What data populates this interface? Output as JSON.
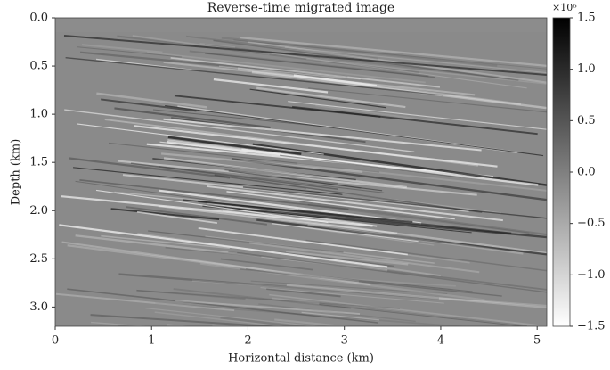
{
  "chart_data": {
    "type": "image",
    "title": "Reverse-time migrated image",
    "xlabel": "Horizontal distance (km)",
    "ylabel": "Depth (km)",
    "xlim": [
      0,
      5.1
    ],
    "xticks": [
      0,
      1,
      2,
      3,
      4,
      5
    ],
    "ylim": [
      0,
      3.2
    ],
    "invert_y": true,
    "yticks": [
      {
        "value": 0,
        "label": "0.0"
      },
      0.5,
      {
        "value": 1,
        "label": "1.0"
      },
      1.5,
      {
        "value": 2,
        "label": "2.0"
      },
      2.5,
      {
        "value": 3,
        "label": "3.0"
      }
    ],
    "colorbar": {
      "lim": [
        -1.5,
        1.5
      ],
      "colors": [
        "#ffffff",
        "#000000"
      ],
      "offset_label": "×10⁶",
      "ticks": [
        {
          "value": -1.5,
          "label": "−1.5"
        },
        {
          "value": -1,
          "label": "−1.0"
        },
        {
          "value": -0.5,
          "label": "−0.5"
        },
        {
          "value": 0,
          "label": "0.0"
        },
        0.5,
        {
          "value": 1,
          "label": "1.0"
        },
        1.5
      ]
    }
  }
}
